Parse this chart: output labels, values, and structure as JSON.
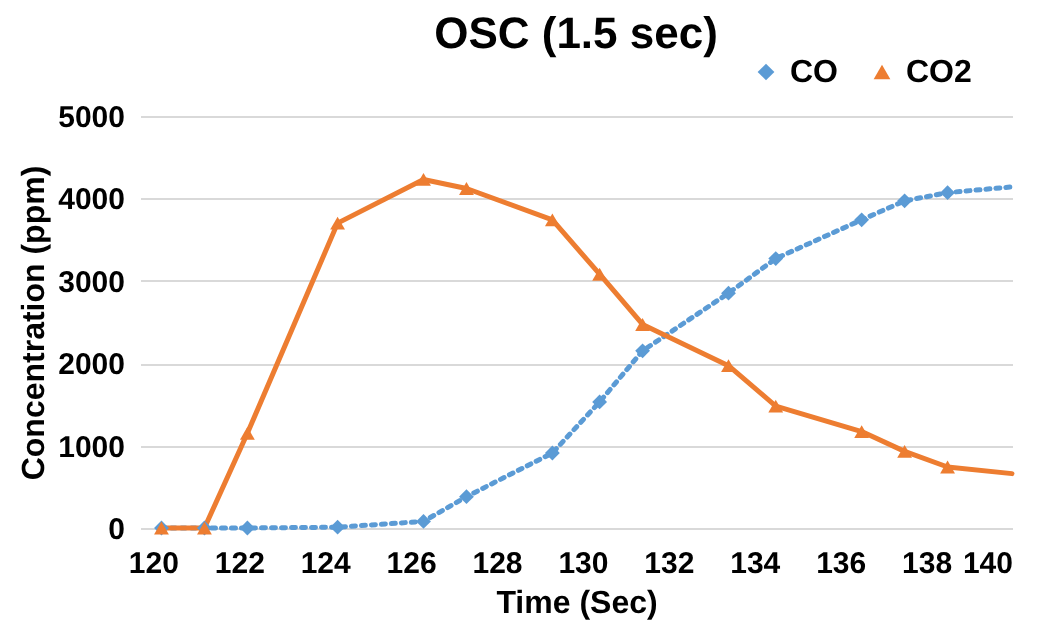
{
  "chart_data": {
    "type": "line",
    "title": "OSC (1.5 sec)",
    "xlabel": "Time (Sec)",
    "ylabel": "Concentration (ppm)",
    "xlim": [
      119.7,
      140
    ],
    "xticks": [
      120,
      122,
      124,
      126,
      128,
      130,
      132,
      134,
      136,
      138,
      140
    ],
    "ylim": [
      0,
      5000
    ],
    "yticks": [
      0,
      1000,
      2000,
      3000,
      4000,
      5000
    ],
    "grid": "y",
    "legend": "top right",
    "series": [
      {
        "name": "CO",
        "color": "#5b9bd5",
        "marker": "diamond",
        "line_style": "dotted",
        "x": [
          120.2,
          121.2,
          122.2,
          124.3,
          126.3,
          127.3,
          129.3,
          130.4,
          131.4,
          133.4,
          134.5,
          136.5,
          137.5,
          138.5,
          140
        ],
        "values": [
          0,
          0,
          0,
          10,
          80,
          380,
          910,
          1530,
          2150,
          2850,
          3270,
          3740,
          3970,
          4070,
          4140
        ]
      },
      {
        "name": "CO2",
        "color": "#ed7d31",
        "marker": "triangle",
        "line_style": "solid",
        "x": [
          120.2,
          121.2,
          122.2,
          124.3,
          126.3,
          127.3,
          129.3,
          130.4,
          131.4,
          133.4,
          134.5,
          136.5,
          137.5,
          138.5,
          140
        ],
        "values": [
          0,
          0,
          1150,
          3700,
          4230,
          4120,
          3740,
          3080,
          2470,
          1970,
          1480,
          1170,
          930,
          740,
          660
        ]
      }
    ]
  }
}
